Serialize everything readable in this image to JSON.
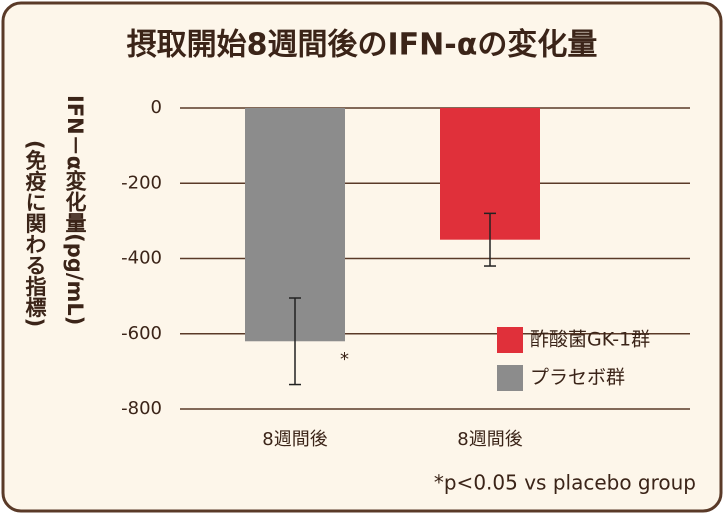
{
  "chart_data": {
    "type": "bar",
    "title": "摂取開始8週間後のIFN-αの変化量",
    "ylabel": [
      "IFN－α変化量(pg/mL)",
      "(免疫に関わる指標)"
    ],
    "categories": [
      "8週間後",
      "8週間後"
    ],
    "series": [
      {
        "name": "酢酸菌GK-1群",
        "color": "#e0303a",
        "values": [
          null,
          -350
        ],
        "errors": [
          null,
          70
        ]
      },
      {
        "name": "プラセボ群",
        "color": "#8c8c8c",
        "values": [
          -620,
          null
        ],
        "errors": [
          115,
          null
        ]
      }
    ],
    "ylim": [
      -800,
      0
    ],
    "yticks": [
      0,
      -200,
      -400,
      -600,
      -800
    ],
    "grid": true,
    "annotations": [
      "*"
    ],
    "footnote": "*p<0.05 vs placebo group"
  }
}
